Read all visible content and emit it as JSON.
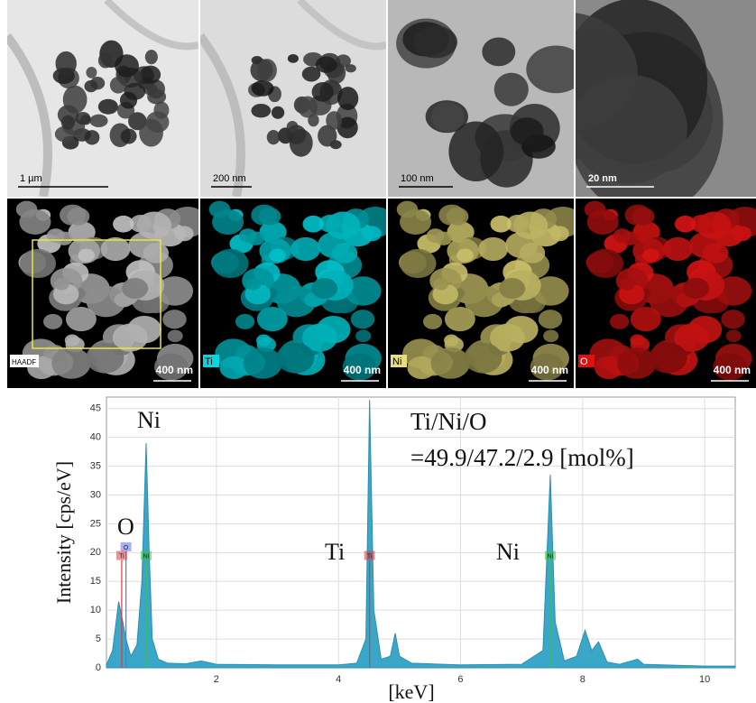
{
  "panels": {
    "tem": [
      {
        "scale": "1 µm"
      },
      {
        "scale": "200 nm"
      },
      {
        "scale": "100 nm"
      },
      {
        "scale": "20 nm"
      }
    ],
    "eds": [
      {
        "label": "HAADF",
        "scale": "400 nm"
      },
      {
        "label": "Ti",
        "scale": "400 nm"
      },
      {
        "label": "Ni",
        "scale": "400 nm"
      },
      {
        "label": "O",
        "scale": "400 nm"
      }
    ]
  },
  "chart_data": {
    "type": "area",
    "x_label": "[keV]",
    "y_label": "Intensity [cps/eV]",
    "x": [
      0.2,
      0.3,
      0.4,
      0.45,
      0.52,
      0.6,
      0.7,
      0.78,
      0.85,
      0.9,
      0.95,
      1.05,
      1.2,
      1.5,
      1.75,
      2.0,
      3.0,
      4.0,
      4.3,
      4.45,
      4.51,
      4.58,
      4.7,
      4.85,
      4.93,
      5.0,
      5.2,
      6.0,
      7.0,
      7.35,
      7.47,
      7.55,
      7.7,
      7.9,
      8.04,
      8.15,
      8.26,
      8.4,
      8.6,
      8.9,
      9.0,
      10.0,
      10.5
    ],
    "values": [
      0.5,
      3,
      11.5,
      9,
      5,
      2,
      4,
      15,
      39,
      20,
      5,
      1.5,
      0.8,
      0.7,
      1.2,
      0.6,
      0.5,
      0.5,
      0.8,
      5,
      46.5,
      10,
      1.5,
      2,
      6,
      2,
      0.8,
      0.5,
      0.6,
      3,
      33.5,
      8,
      1.2,
      2,
      6.5,
      3,
      4.5,
      1,
      0.6,
      1.5,
      0.6,
      0.3,
      0.3
    ],
    "color": "#3aa6c8",
    "xlim": [
      0.2,
      10.5
    ],
    "xticks": [
      2,
      4,
      6,
      8,
      10
    ],
    "ylim": [
      0,
      47
    ],
    "yticks": [
      0,
      5,
      10,
      15,
      20,
      25,
      30,
      35,
      40,
      45
    ],
    "grid": true,
    "markers": [
      {
        "label": "Ti",
        "x": 0.45,
        "color": "#e03a3a"
      },
      {
        "label": "O",
        "x": 0.52,
        "color": "#6a6ae8"
      },
      {
        "label": "Ni",
        "x": 0.85,
        "color": "#3cc43c"
      },
      {
        "label": "Ti",
        "x": 4.51,
        "color": "#e03a3a"
      },
      {
        "label": "Ni",
        "x": 7.47,
        "color": "#3cc43c"
      }
    ],
    "annotations": [
      "Ni",
      "O",
      "Ti",
      "Ni",
      "Ti/Ni/O",
      "=49.9/47.2/2.9 [mol%]"
    ]
  }
}
